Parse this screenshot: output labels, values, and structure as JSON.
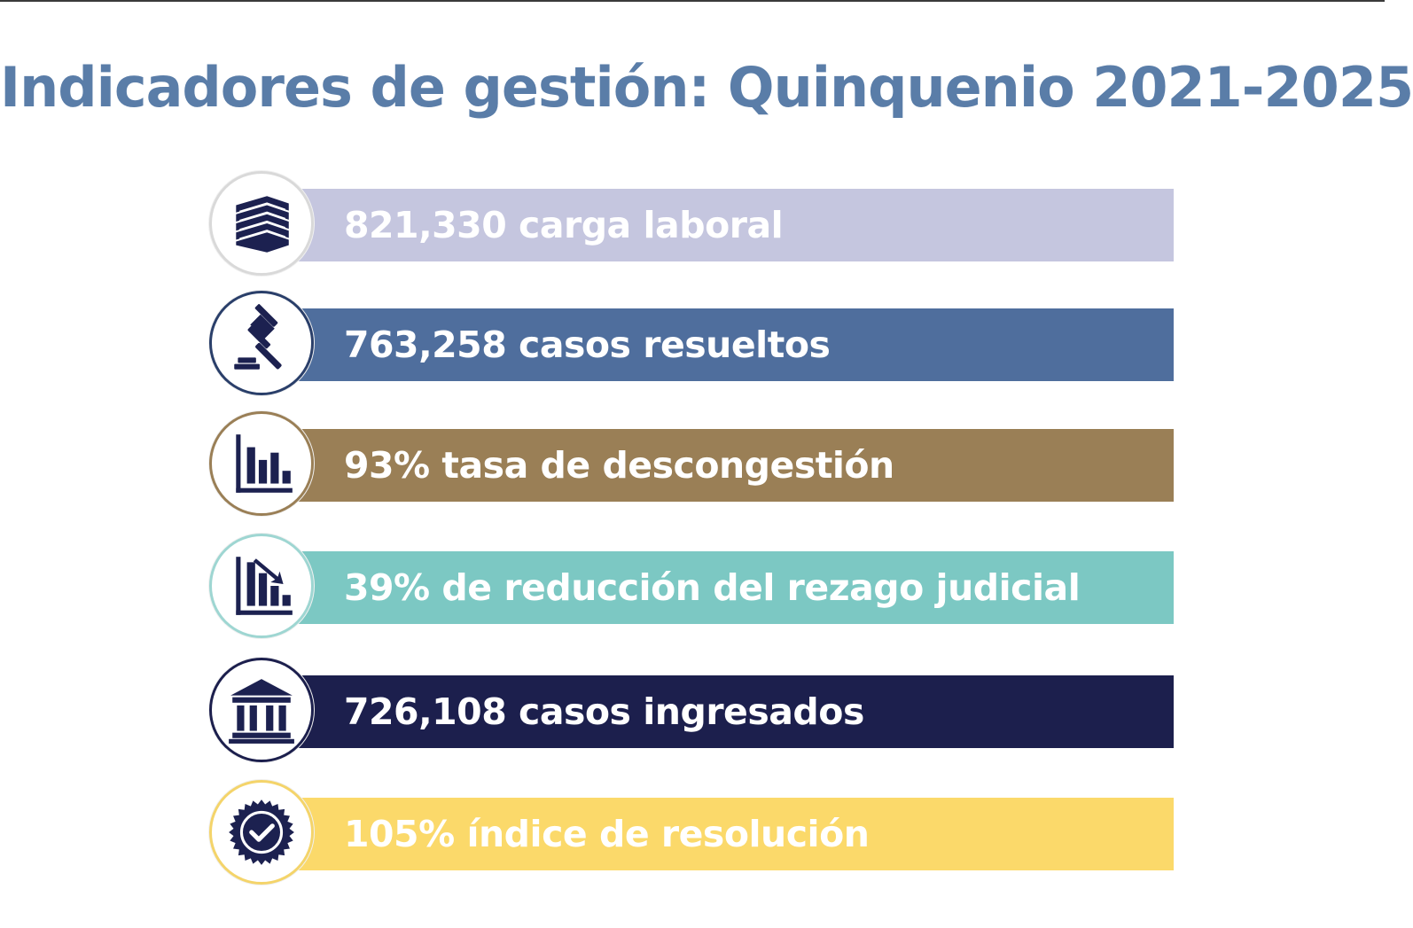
{
  "title": "Indicadores de gestión: Quinquenio 2021-2025",
  "indicators": [
    {
      "label": "821,330 carga laboral",
      "color": "#c5c6df",
      "ring": "#d9d9d9",
      "icon": "books-icon"
    },
    {
      "label": "763,258 casos resueltos",
      "color": "#4f6e9d",
      "ring": "#2a3f6a",
      "icon": "gavel-icon"
    },
    {
      "label": "93% tasa de descongestión",
      "color": "#9a7f56",
      "ring": "#9a7f56",
      "icon": "bar-chart-icon"
    },
    {
      "label": "39% de reducción del rezago judicial",
      "color": "#7cc8c3",
      "ring": "#9ed6d2",
      "icon": "declining-chart-icon"
    },
    {
      "label": "726,108 casos ingresados",
      "color": "#1c1f4d",
      "ring": "#1c1f4d",
      "icon": "courthouse-icon"
    },
    {
      "label": "105% índice de resolución",
      "color": "#fbd96a",
      "ring": "#f4d46a",
      "icon": "verified-badge-icon"
    }
  ],
  "icon_color": "#1c2150"
}
